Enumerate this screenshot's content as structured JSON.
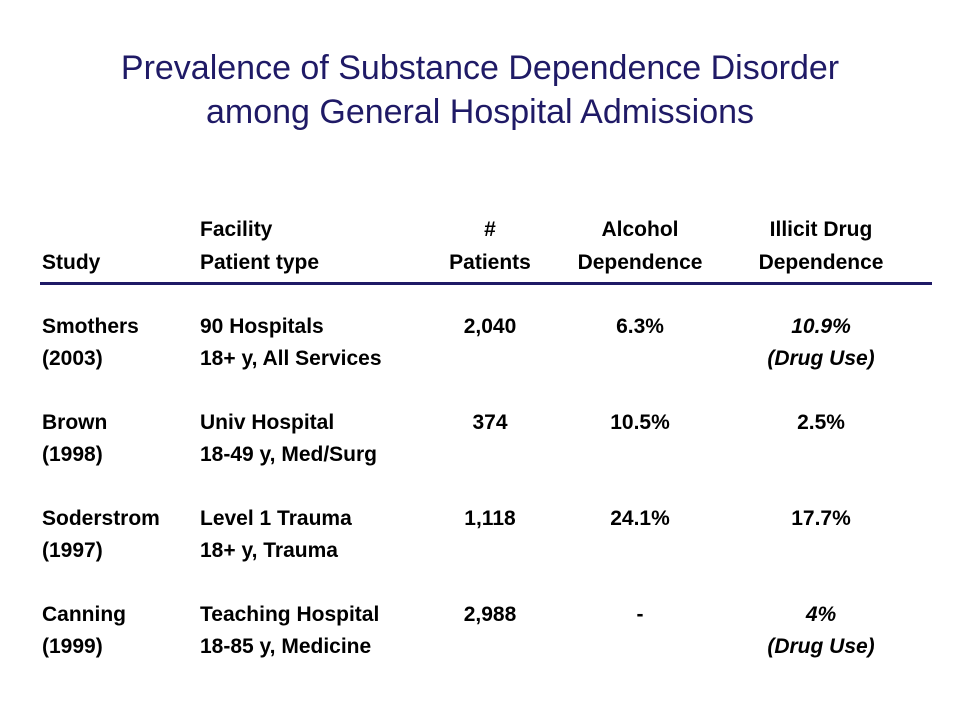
{
  "title": {
    "line1": "Prevalence of Substance Dependence Disorder",
    "line2": "among General Hospital Admissions"
  },
  "headers": {
    "study": "Study",
    "facility_line1": "Facility",
    "facility_line2": "Patient type",
    "patients_line1": "#",
    "patients_line2": "Patients",
    "alcohol_line1": "Alcohol",
    "alcohol_line2": "Dependence",
    "drug_line1": "Illicit Drug",
    "drug_line2": "Dependence"
  },
  "rows": [
    {
      "study": "Smothers",
      "year": "(2003)",
      "facility": "90 Hospitals",
      "patient_type": "18+ y, All Services",
      "patients": "2,040",
      "alcohol": "6.3%",
      "drug": "10.9%",
      "drug_note": "(Drug Use)"
    },
    {
      "study": "Brown",
      "year": "(1998)",
      "facility": "Univ Hospital",
      "patient_type": "18-49 y, Med/Surg",
      "patients": "374",
      "alcohol": "10.5%",
      "drug": "2.5%",
      "drug_note": ""
    },
    {
      "study": "Soderstrom",
      "year": "(1997)",
      "facility": "Level 1 Trauma",
      "patient_type": "18+ y, Trauma",
      "patients": "1,118",
      "alcohol": "24.1%",
      "drug": "17.7%",
      "drug_note": ""
    },
    {
      "study": "Canning",
      "year": "(1999)",
      "facility": "Teaching Hospital",
      "patient_type": "18-85 y, Medicine",
      "patients": "2,988",
      "alcohol": "-",
      "drug": "4%",
      "drug_note": "(Drug Use)"
    }
  ],
  "colors": {
    "title": "#1f1a66",
    "rule": "#1f1a66",
    "text": "#000000"
  }
}
